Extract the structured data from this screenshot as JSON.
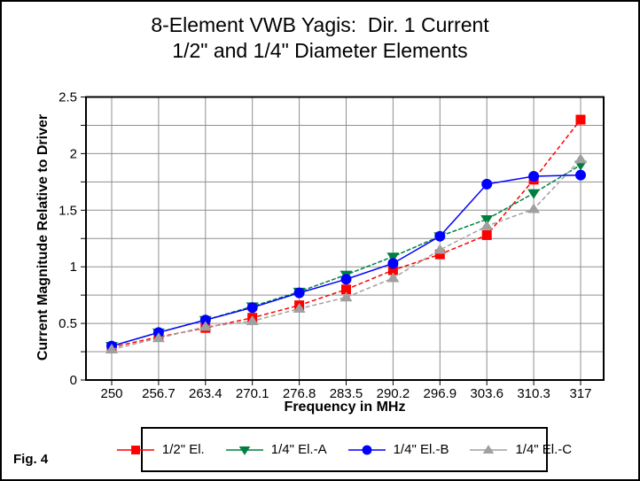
{
  "figure": {
    "title_line1": "8-Element VWB Yagis:  Dir. 1 Current",
    "title_line2": "1/2\" and 1/4\" Diameter Elements",
    "fig_label": "Fig. 4"
  },
  "colors": {
    "grid": "#909090",
    "axis": "#000000",
    "background": "#ffffff"
  },
  "chart_data": {
    "type": "line",
    "title": "8-Element VWB Yagis: Dir. 1 Current — 1/2\" and 1/4\" Diameter Elements",
    "xlabel": "Frequency in MHz",
    "ylabel": "Current Magnitude Relative to Driver",
    "categories": [
      250,
      256.7,
      263.4,
      270.1,
      276.8,
      283.5,
      290.2,
      296.9,
      303.6,
      310.3,
      317
    ],
    "x_tick_labels": [
      "250",
      "256.7",
      "263.4",
      "270.1",
      "276.8",
      "283.5",
      "290.2",
      "296.9",
      "303.6",
      "310.3",
      "317"
    ],
    "ylim": [
      0,
      2.5
    ],
    "y_tick_values": [
      0,
      0.5,
      1,
      1.5,
      2,
      2.5
    ],
    "y_tick_labels": [
      "0",
      "0.5",
      "1",
      "1.5",
      "2",
      "2.5"
    ],
    "y_minor_step": 0.25,
    "grid": true,
    "legend_position": "bottom",
    "series": [
      {
        "name": "1/2\" El.",
        "color": "#ff0000",
        "marker": "square",
        "dash": "5,3",
        "values": [
          0.29,
          0.38,
          0.46,
          0.55,
          0.66,
          0.8,
          0.97,
          1.11,
          1.28,
          1.77,
          2.3
        ]
      },
      {
        "name": "1/4\" El.-A",
        "color": "#008040",
        "marker": "triangle-down",
        "dash": "5,2",
        "values": [
          0.3,
          0.42,
          0.53,
          0.65,
          0.78,
          0.93,
          1.09,
          1.27,
          1.42,
          1.65,
          1.9
        ]
      },
      {
        "name": "1/4\" El.-B",
        "color": "#0000ff",
        "marker": "circle",
        "dash": "",
        "values": [
          0.3,
          0.42,
          0.53,
          0.64,
          0.77,
          0.89,
          1.03,
          1.27,
          1.73,
          1.8,
          1.81
        ]
      },
      {
        "name": "1/4\" El.-C",
        "color": "#a0a0a0",
        "marker": "triangle-up",
        "dash": "5,3",
        "values": [
          0.27,
          0.37,
          0.47,
          0.52,
          0.63,
          0.73,
          0.9,
          1.15,
          1.36,
          1.51,
          1.95
        ]
      }
    ]
  }
}
